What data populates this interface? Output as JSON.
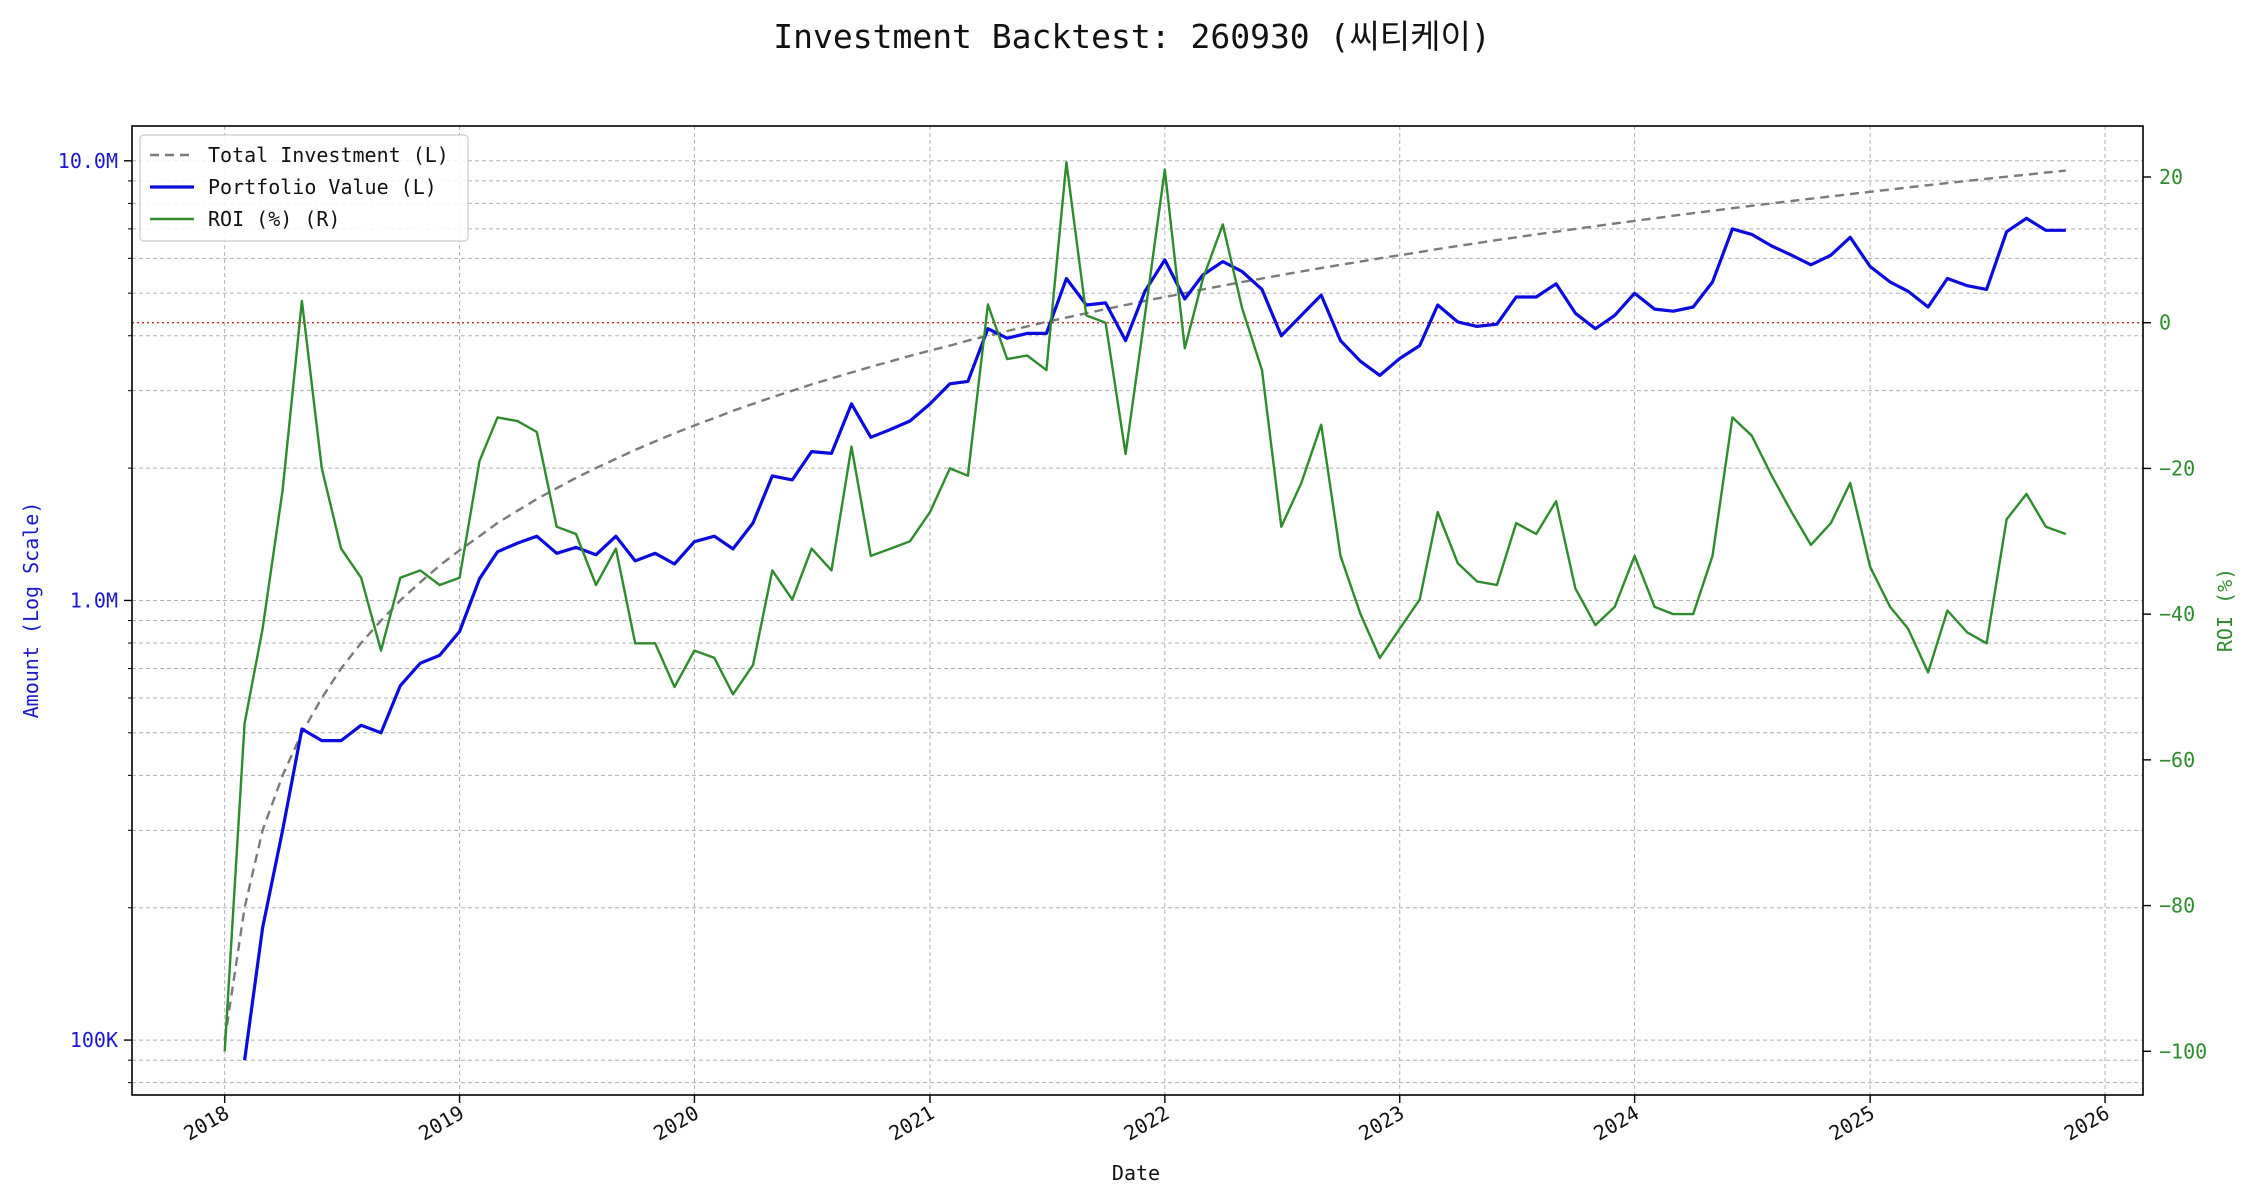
{
  "chart_data": {
    "type": "line",
    "title": "Investment Backtest: 260930 (씨티케이)",
    "xlabel": "Date",
    "ylabel_left": "Amount (Log Scale)",
    "ylabel_right": "ROI (%)",
    "x_ticks": [
      "2018",
      "2019",
      "2020",
      "2021",
      "2022",
      "2023",
      "2024",
      "2025",
      "2026"
    ],
    "y_left_ticks": [
      {
        "value": 100000,
        "label": "100K"
      },
      {
        "value": 1000000,
        "label": "1.0M"
      },
      {
        "value": 10000000,
        "label": "10.0M"
      }
    ],
    "y_right_ticks": [
      {
        "value": 20,
        "label": "20"
      },
      {
        "value": 0,
        "label": "0"
      },
      {
        "value": -20,
        "label": "−20"
      },
      {
        "value": -40,
        "label": "−40"
      },
      {
        "value": -60,
        "label": "−60"
      },
      {
        "value": -80,
        "label": "−80"
      },
      {
        "value": -100,
        "label": "−100"
      }
    ],
    "x_range": [
      "2017-08-10",
      "2026-03-01"
    ],
    "y_left_range": [
      75000,
      12000000
    ],
    "y_left_scale": "log",
    "y_right_range": [
      -106,
      27
    ],
    "grid": true,
    "legend_position": "upper-left",
    "reference_line": {
      "axis": "right",
      "value": 0,
      "color": "#c62828",
      "style": "dotted"
    },
    "colors": {
      "investment": "#7a7a7a",
      "portfolio": "#0b0bdd",
      "roi": "#2e8b2e",
      "left_axis": "#1a1acc",
      "right_axis": "#2e8b2e"
    },
    "series": [
      {
        "name": "Total Investment (L)",
        "axis": "left",
        "style": "dashed",
        "x": [
          "2018-01",
          "2018-02",
          "2018-03",
          "2018-04",
          "2018-05",
          "2018-06",
          "2018-07",
          "2018-08",
          "2018-09",
          "2018-10",
          "2018-11",
          "2018-12",
          "2019-01",
          "2019-02",
          "2019-03",
          "2019-04",
          "2019-05",
          "2019-06",
          "2019-07",
          "2019-08",
          "2019-09",
          "2019-10",
          "2019-11",
          "2019-12",
          "2020-01",
          "2020-02",
          "2020-03",
          "2020-04",
          "2020-05",
          "2020-06",
          "2020-07",
          "2020-08",
          "2020-09",
          "2020-10",
          "2020-11",
          "2020-12",
          "2021-01",
          "2021-02",
          "2021-03",
          "2021-04",
          "2021-05",
          "2021-06",
          "2021-07",
          "2021-08",
          "2021-09",
          "2021-10",
          "2021-11",
          "2021-12",
          "2022-01",
          "2022-02",
          "2022-03",
          "2022-04",
          "2022-05",
          "2022-06",
          "2022-07",
          "2022-08",
          "2022-09",
          "2022-10",
          "2022-11",
          "2022-12",
          "2023-01",
          "2023-02",
          "2023-03",
          "2023-04",
          "2023-05",
          "2023-06",
          "2023-07",
          "2023-08",
          "2023-09",
          "2023-10",
          "2023-11",
          "2023-12",
          "2024-01",
          "2024-02",
          "2024-03",
          "2024-04",
          "2024-05",
          "2024-06",
          "2024-07",
          "2024-08",
          "2024-09",
          "2024-10",
          "2024-11",
          "2024-12",
          "2025-01",
          "2025-02",
          "2025-03",
          "2025-04",
          "2025-05",
          "2025-06",
          "2025-07",
          "2025-08",
          "2025-09",
          "2025-10",
          "2025-11"
        ],
        "values": [
          100000,
          200000,
          300000,
          400000,
          500000,
          600000,
          700000,
          800000,
          900000,
          1000000,
          1100000,
          1200000,
          1300000,
          1400000,
          1500000,
          1600000,
          1700000,
          1800000,
          1900000,
          2000000,
          2100000,
          2200000,
          2300000,
          2400000,
          2500000,
          2600000,
          2700000,
          2800000,
          2900000,
          3000000,
          3100000,
          3200000,
          3300000,
          3400000,
          3500000,
          3600000,
          3700000,
          3800000,
          3900000,
          4000000,
          4100000,
          4200000,
          4300000,
          4400000,
          4500000,
          4600000,
          4700000,
          4800000,
          4900000,
          5000000,
          5100000,
          5200000,
          5300000,
          5400000,
          5500000,
          5600000,
          5700000,
          5800000,
          5900000,
          6000000,
          6100000,
          6200000,
          6300000,
          6400000,
          6500000,
          6600000,
          6700000,
          6800000,
          6900000,
          7000000,
          7100000,
          7200000,
          7300000,
          7400000,
          7500000,
          7600000,
          7700000,
          7800000,
          7900000,
          8000000,
          8100000,
          8200000,
          8300000,
          8400000,
          8500000,
          8600000,
          8700000,
          8800000,
          8900000,
          9000000,
          9100000,
          9200000,
          9300000,
          9400000,
          9500000
        ]
      },
      {
        "name": "Portfolio Value (L)",
        "axis": "left",
        "style": "solid",
        "x": [
          "2018-02",
          "2018-03",
          "2018-04",
          "2018-05",
          "2018-06",
          "2018-07",
          "2018-08",
          "2018-09",
          "2018-10",
          "2018-11",
          "2018-12",
          "2019-01",
          "2019-02",
          "2019-03",
          "2019-04",
          "2019-05",
          "2019-06",
          "2019-07",
          "2019-08",
          "2019-09",
          "2019-10",
          "2019-11",
          "2019-12",
          "2020-01",
          "2020-02",
          "2020-03",
          "2020-04",
          "2020-05",
          "2020-06",
          "2020-07",
          "2020-08",
          "2020-09",
          "2020-10",
          "2020-11",
          "2020-12",
          "2021-01",
          "2021-02",
          "2021-03",
          "2021-04",
          "2021-05",
          "2021-06",
          "2021-07",
          "2021-08",
          "2021-09",
          "2021-10",
          "2021-11",
          "2021-12",
          "2022-01",
          "2022-02",
          "2022-03",
          "2022-04",
          "2022-05",
          "2022-06",
          "2022-07",
          "2022-08",
          "2022-09",
          "2022-10",
          "2022-11",
          "2022-12",
          "2023-01",
          "2023-02",
          "2023-03",
          "2023-04",
          "2023-05",
          "2023-06",
          "2023-07",
          "2023-08",
          "2023-09",
          "2023-10",
          "2023-11",
          "2023-12",
          "2024-01",
          "2024-02",
          "2024-03",
          "2024-04",
          "2024-05",
          "2024-06",
          "2024-07",
          "2024-08",
          "2024-09",
          "2024-10",
          "2024-11",
          "2024-12",
          "2025-01",
          "2025-02",
          "2025-03",
          "2025-04",
          "2025-05",
          "2025-06",
          "2025-07",
          "2025-08",
          "2025-09",
          "2025-10",
          "2025-11"
        ],
        "values": [
          90000,
          180000,
          300000,
          510000,
          480000,
          480000,
          520000,
          500000,
          640000,
          720000,
          750000,
          850000,
          1120000,
          1290000,
          1350000,
          1400000,
          1280000,
          1320000,
          1270000,
          1400000,
          1230000,
          1280000,
          1210000,
          1360000,
          1400000,
          1310000,
          1500000,
          1920000,
          1880000,
          2180000,
          2160000,
          2800000,
          2350000,
          2450000,
          2560000,
          2800000,
          3110000,
          3150000,
          4150000,
          3950000,
          4050000,
          4050000,
          5400000,
          4700000,
          4750000,
          3900000,
          5050000,
          5950000,
          4850000,
          5500000,
          5900000,
          5600000,
          5100000,
          4000000,
          4450000,
          4950000,
          3900000,
          3500000,
          3250000,
          3550000,
          3800000,
          4700000,
          4300000,
          4200000,
          4250000,
          4900000,
          4900000,
          5250000,
          4500000,
          4150000,
          4450000,
          5000000,
          4600000,
          4550000,
          4650000,
          5300000,
          7000000,
          6800000,
          6400000,
          6100000,
          5800000,
          6100000,
          6700000,
          5750000,
          5300000,
          5050000,
          4650000,
          5400000,
          5200000,
          5100000,
          6900000,
          7400000,
          6950000,
          6950000
        ]
      },
      {
        "name": "ROI (%) (R)",
        "axis": "right",
        "style": "solid",
        "x": [
          "2018-01",
          "2018-02",
          "2018-03",
          "2018-04",
          "2018-05",
          "2018-06",
          "2018-07",
          "2018-08",
          "2018-09",
          "2018-10",
          "2018-11",
          "2018-12",
          "2019-01",
          "2019-02",
          "2019-03",
          "2019-04",
          "2019-05",
          "2019-06",
          "2019-07",
          "2019-08",
          "2019-09",
          "2019-10",
          "2019-11",
          "2019-12",
          "2020-01",
          "2020-02",
          "2020-03",
          "2020-04",
          "2020-05",
          "2020-06",
          "2020-07",
          "2020-08",
          "2020-09",
          "2020-10",
          "2020-11",
          "2020-12",
          "2021-01",
          "2021-02",
          "2021-03",
          "2021-04",
          "2021-05",
          "2021-06",
          "2021-07",
          "2021-08",
          "2021-09",
          "2021-10",
          "2021-11",
          "2021-12",
          "2022-01",
          "2022-02",
          "2022-03",
          "2022-04",
          "2022-05",
          "2022-06",
          "2022-07",
          "2022-08",
          "2022-09",
          "2022-10",
          "2022-11",
          "2022-12",
          "2023-01",
          "2023-02",
          "2023-03",
          "2023-04",
          "2023-05",
          "2023-06",
          "2023-07",
          "2023-08",
          "2023-09",
          "2023-10",
          "2023-11",
          "2023-12",
          "2024-01",
          "2024-02",
          "2024-03",
          "2024-04",
          "2024-05",
          "2024-06",
          "2024-07",
          "2024-08",
          "2024-09",
          "2024-10",
          "2024-11",
          "2024-12",
          "2025-01",
          "2025-02",
          "2025-03",
          "2025-04",
          "2025-05",
          "2025-06",
          "2025-07",
          "2025-08",
          "2025-09",
          "2025-10",
          "2025-11"
        ],
        "values": [
          -100,
          -55,
          -42,
          -23,
          3,
          -20,
          -31,
          -35,
          -45,
          -35,
          -34,
          -36,
          -35,
          -19,
          -13,
          -13.5,
          -15,
          -28,
          -29,
          -36,
          -31,
          -44,
          -44,
          -50,
          -45,
          -46,
          -51,
          -47,
          -34,
          -38,
          -31,
          -34,
          -17,
          -32,
          -31,
          -30,
          -26,
          -20,
          -21,
          2.5,
          -5,
          -4.5,
          -6.5,
          22,
          1,
          0,
          -18,
          1,
          21,
          -3.5,
          6,
          13.5,
          2,
          -6.5,
          -28,
          -22,
          -14,
          -32,
          -40,
          -46,
          -42,
          -38,
          -26,
          -33,
          -35.5,
          -36,
          -27.5,
          -29,
          -24.5,
          -36.5,
          -41.5,
          -39,
          -32,
          -39,
          -40,
          -40,
          -32,
          -13,
          -15.5,
          -21,
          -26,
          -30.5,
          -27.5,
          -22,
          -33.5,
          -39,
          -42,
          -48,
          -39.5,
          -42.5,
          -44,
          -27,
          -23.5,
          -28,
          -29
        ]
      }
    ]
  }
}
